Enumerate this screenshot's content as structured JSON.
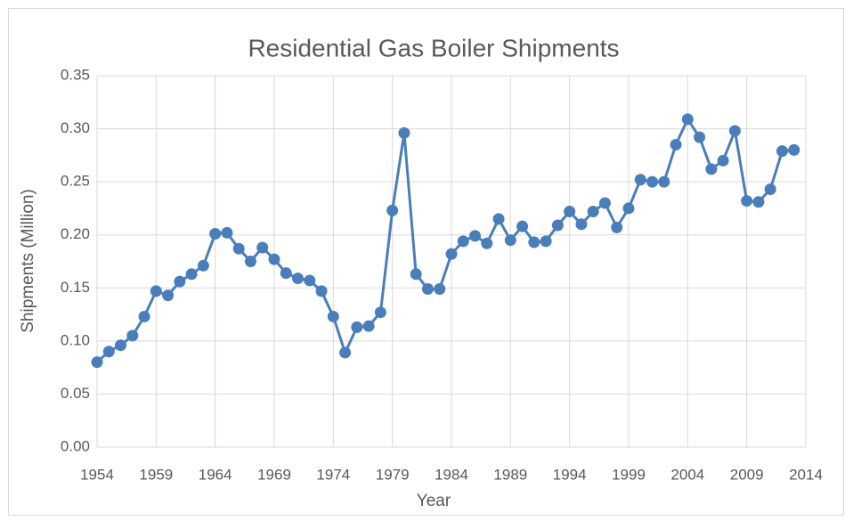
{
  "chart_data": {
    "type": "line",
    "title": "Residential Gas Boiler Shipments",
    "x_label": "Year",
    "y_label": "Shipments (Million)",
    "x": [
      1954,
      1955,
      1956,
      1957,
      1958,
      1959,
      1960,
      1961,
      1962,
      1963,
      1964,
      1965,
      1966,
      1967,
      1968,
      1969,
      1970,
      1971,
      1972,
      1973,
      1974,
      1975,
      1976,
      1977,
      1978,
      1979,
      1980,
      1981,
      1982,
      1983,
      1984,
      1985,
      1986,
      1987,
      1988,
      1989,
      1990,
      1991,
      1992,
      1993,
      1994,
      1995,
      1996,
      1997,
      1998,
      1999,
      2000,
      2001,
      2002,
      2003,
      2004,
      2005,
      2006,
      2007,
      2008,
      2009,
      2010,
      2011,
      2012,
      2013
    ],
    "values": [
      0.08,
      0.09,
      0.096,
      0.105,
      0.123,
      0.147,
      0.143,
      0.156,
      0.163,
      0.171,
      0.201,
      0.202,
      0.187,
      0.175,
      0.188,
      0.177,
      0.164,
      0.159,
      0.157,
      0.147,
      0.123,
      0.089,
      0.113,
      0.114,
      0.127,
      0.223,
      0.296,
      0.163,
      0.149,
      0.149,
      0.182,
      0.194,
      0.199,
      0.192,
      0.215,
      0.195,
      0.208,
      0.193,
      0.194,
      0.209,
      0.222,
      0.21,
      0.222,
      0.23,
      0.207,
      0.225,
      0.252,
      0.25,
      0.25,
      0.285,
      0.309,
      0.292,
      0.262,
      0.27,
      0.298,
      0.232,
      0.231,
      0.243,
      0.279,
      0.28
    ],
    "color": "#4a7ebb",
    "xlim": [
      1954,
      2014
    ],
    "xticks": [
      1954,
      1959,
      1964,
      1969,
      1974,
      1979,
      1984,
      1989,
      1994,
      1999,
      2004,
      2009,
      2014
    ],
    "ylim": [
      0,
      0.35
    ],
    "yticks": [
      {
        "value": 0,
        "label": "0.00"
      },
      {
        "value": 0.05,
        "label": "0.05"
      },
      {
        "value": 0.1,
        "label": "0.10"
      },
      {
        "value": 0.15,
        "label": "0.15"
      },
      {
        "value": 0.2,
        "label": "0.20"
      },
      {
        "value": 0.25,
        "label": "0.25"
      },
      {
        "value": 0.3,
        "label": "0.30"
      },
      {
        "value": 0.35,
        "label": "0.35"
      }
    ],
    "grid": true
  }
}
